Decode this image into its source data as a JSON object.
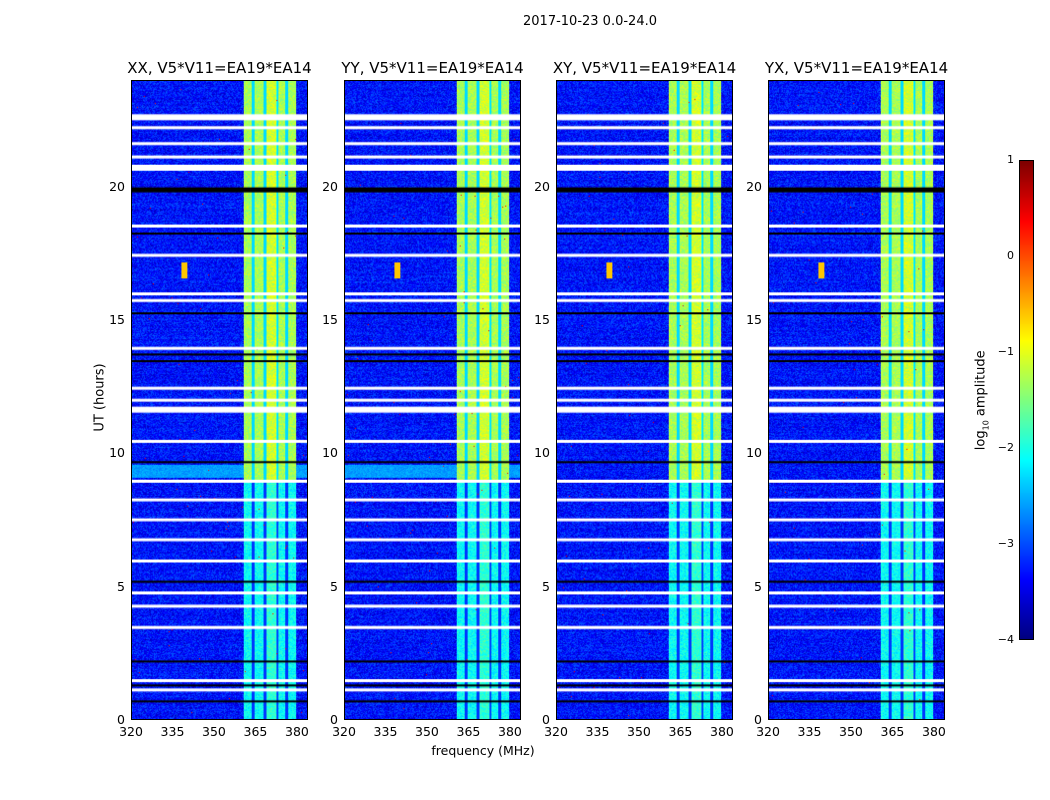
{
  "chart_data": {
    "type": "heatmap",
    "title": "2017-10-23 0.0-24.0",
    "xlabel": "frequency (MHz)",
    "ylabel": "UT (hours)",
    "xlim": [
      320,
      384
    ],
    "ylim": [
      0,
      24
    ],
    "x_ticks": [
      "320",
      "335",
      "350",
      "365",
      "380"
    ],
    "x_tick_values": [
      320,
      335,
      350,
      365,
      380
    ],
    "y_ticks": [
      "0",
      "5",
      "10",
      "15",
      "20"
    ],
    "y_tick_values": [
      0,
      5,
      10,
      15,
      20
    ],
    "panels": [
      {
        "title": "XX, V5*V11=EA19*EA14",
        "seed": 11,
        "rfi": true
      },
      {
        "title": "YY, V5*V11=EA19*EA14",
        "seed": 23,
        "rfi": true
      },
      {
        "title": "XY, V5*V11=EA19*EA14",
        "seed": 37,
        "rfi": true
      },
      {
        "title": "YX, V5*V11=EA19*EA14",
        "seed": 51,
        "rfi": true
      }
    ],
    "background_level": -3.3,
    "band": {
      "freq_range": [
        360.5,
        380
      ],
      "gaps_mhz": [
        364,
        368.5,
        373,
        376.5
      ],
      "level_after_9h": -1.3,
      "level_before_9h": -2.1
    },
    "flagged_white_hours": [
      22.75,
      22.3,
      21.7,
      21.2,
      20.85,
      18.6,
      17.5,
      16.05,
      15.8,
      14.0,
      12.5,
      12.05,
      11.75,
      10.5,
      9.0,
      8.3,
      7.55,
      6.8,
      6.0,
      4.8,
      4.3,
      3.5,
      1.5,
      1.15
    ],
    "flagged_black_hours": [
      20.0,
      18.3,
      15.3,
      13.75,
      13.5,
      9.7,
      5.2,
      2.2,
      1.3,
      0.7
    ],
    "colorbar": {
      "label": "log",
      "label_sub": "10",
      "label_rest": " amplitude",
      "range": [
        -4,
        1
      ],
      "ticks": [
        "1",
        "0",
        "−1",
        "−2",
        "−3",
        "−4"
      ],
      "tick_values": [
        1,
        0,
        -1,
        -2,
        -3,
        -4
      ],
      "colormap": "jet"
    }
  }
}
